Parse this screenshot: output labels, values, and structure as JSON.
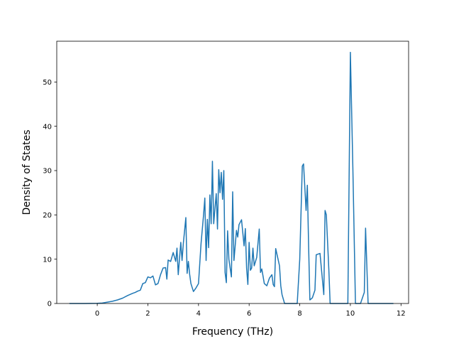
{
  "chart_data": {
    "type": "line",
    "title": "",
    "xlabel": "Frequency (THz)",
    "ylabel": "Density of States",
    "xlim": [
      -1.6,
      12.3
    ],
    "ylim": [
      0,
      59.2
    ],
    "xticks": [
      0,
      2,
      4,
      6,
      8,
      10,
      12
    ],
    "yticks": [
      0,
      10,
      20,
      30,
      40,
      50
    ],
    "grid": false,
    "legend": "none",
    "series": [
      {
        "color": "#1f77b4",
        "points": [
          [
            -1.1,
            0
          ],
          [
            -0.5,
            0
          ],
          [
            0.0,
            0.05
          ],
          [
            0.2,
            0.1
          ],
          [
            0.4,
            0.3
          ],
          [
            0.6,
            0.5
          ],
          [
            0.8,
            0.8
          ],
          [
            1.0,
            1.2
          ],
          [
            1.2,
            1.8
          ],
          [
            1.4,
            2.3
          ],
          [
            1.5,
            2.5
          ],
          [
            1.6,
            2.8
          ],
          [
            1.7,
            3.0
          ],
          [
            1.8,
            4.5
          ],
          [
            1.9,
            4.7
          ],
          [
            2.0,
            6.0
          ],
          [
            2.1,
            5.8
          ],
          [
            2.2,
            6.2
          ],
          [
            2.3,
            4.2
          ],
          [
            2.4,
            4.5
          ],
          [
            2.5,
            6.5
          ],
          [
            2.6,
            8.0
          ],
          [
            2.7,
            8.1
          ],
          [
            2.75,
            5.5
          ],
          [
            2.8,
            9.8
          ],
          [
            2.9,
            9.5
          ],
          [
            3.0,
            11.5
          ],
          [
            3.1,
            9.5
          ],
          [
            3.15,
            12.5
          ],
          [
            3.2,
            6.5
          ],
          [
            3.3,
            13.8
          ],
          [
            3.35,
            9.7
          ],
          [
            3.4,
            13.5
          ],
          [
            3.5,
            19.4
          ],
          [
            3.55,
            6.8
          ],
          [
            3.6,
            9.5
          ],
          [
            3.65,
            6.6
          ],
          [
            3.7,
            4.5
          ],
          [
            3.8,
            2.7
          ],
          [
            3.9,
            3.5
          ],
          [
            4.0,
            4.5
          ],
          [
            4.1,
            13.5
          ],
          [
            4.2,
            20.0
          ],
          [
            4.25,
            23.8
          ],
          [
            4.3,
            9.7
          ],
          [
            4.35,
            19.0
          ],
          [
            4.4,
            12.6
          ],
          [
            4.45,
            24.5
          ],
          [
            4.5,
            18.0
          ],
          [
            4.55,
            32.1
          ],
          [
            4.6,
            18.0
          ],
          [
            4.7,
            24.8
          ],
          [
            4.75,
            16.8
          ],
          [
            4.8,
            30.2
          ],
          [
            4.85,
            25.0
          ],
          [
            4.9,
            29.6
          ],
          [
            4.95,
            23.5
          ],
          [
            5.0,
            30.0
          ],
          [
            5.05,
            7.0
          ],
          [
            5.1,
            4.7
          ],
          [
            5.15,
            16.4
          ],
          [
            5.2,
            10.0
          ],
          [
            5.3,
            6.0
          ],
          [
            5.35,
            25.2
          ],
          [
            5.4,
            9.7
          ],
          [
            5.5,
            16.5
          ],
          [
            5.55,
            15.0
          ],
          [
            5.6,
            17.8
          ],
          [
            5.7,
            18.9
          ],
          [
            5.8,
            13.0
          ],
          [
            5.85,
            16.9
          ],
          [
            5.9,
            8.0
          ],
          [
            5.95,
            4.3
          ],
          [
            6.0,
            13.8
          ],
          [
            6.05,
            7.5
          ],
          [
            6.1,
            8.0
          ],
          [
            6.15,
            12.5
          ],
          [
            6.2,
            8.5
          ],
          [
            6.3,
            10.4
          ],
          [
            6.4,
            16.8
          ],
          [
            6.45,
            7.0
          ],
          [
            6.5,
            7.8
          ],
          [
            6.6,
            4.5
          ],
          [
            6.7,
            4.0
          ],
          [
            6.8,
            5.7
          ],
          [
            6.9,
            6.5
          ],
          [
            6.95,
            4.3
          ],
          [
            7.0,
            3.8
          ],
          [
            7.05,
            12.4
          ],
          [
            7.2,
            8.5
          ],
          [
            7.25,
            4.0
          ],
          [
            7.3,
            2.0
          ],
          [
            7.4,
            0
          ],
          [
            7.6,
            0
          ],
          [
            7.9,
            0
          ],
          [
            8.0,
            10.0
          ],
          [
            8.1,
            31.0
          ],
          [
            8.15,
            31.5
          ],
          [
            8.25,
            21.0
          ],
          [
            8.3,
            26.7
          ],
          [
            8.35,
            13.0
          ],
          [
            8.4,
            0.8
          ],
          [
            8.5,
            1.3
          ],
          [
            8.6,
            3.0
          ],
          [
            8.65,
            11.0
          ],
          [
            8.8,
            11.3
          ],
          [
            8.95,
            2.0
          ],
          [
            9.0,
            21.0
          ],
          [
            9.05,
            20.0
          ],
          [
            9.15,
            7.5
          ],
          [
            9.2,
            0
          ],
          [
            9.8,
            0
          ],
          [
            9.9,
            0
          ],
          [
            10.0,
            56.7
          ],
          [
            10.1,
            30.0
          ],
          [
            10.2,
            0
          ],
          [
            10.4,
            0
          ],
          [
            10.55,
            2.5
          ],
          [
            10.6,
            17.0
          ],
          [
            10.7,
            0
          ],
          [
            11.0,
            0
          ],
          [
            11.7,
            0
          ]
        ]
      }
    ]
  }
}
